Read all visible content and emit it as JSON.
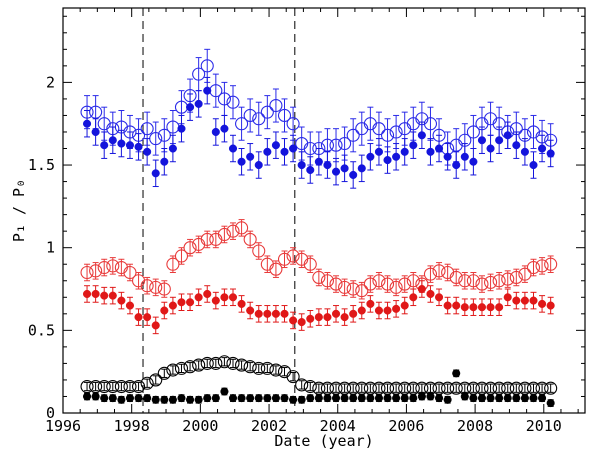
{
  "chart_data": {
    "type": "scatter",
    "title": "",
    "xlabel": "Date (year)",
    "ylabel": "P₁ / P₀",
    "xlim": [
      1996,
      2011.2
    ],
    "ylim": [
      0,
      2.45
    ],
    "xticks": [
      1996,
      1998,
      2000,
      2002,
      2004,
      2006,
      2008,
      2010
    ],
    "yticks": [
      0,
      0.5,
      1,
      1.5,
      2
    ],
    "ytick_labels": [
      "0",
      "0.5",
      "1",
      "1.5",
      "2"
    ],
    "vertical_lines": [
      1998.33,
      2002.75
    ],
    "grid": false,
    "series": [
      {
        "color": "#2a2ae8",
        "marker": "open-circle",
        "x": [
          1996.7,
          1996.95,
          1997.2,
          1997.45,
          1997.7,
          1997.95,
          1998.2,
          1998.45,
          1998.7,
          1998.95,
          1999.2,
          1999.45,
          1999.7,
          1999.95,
          2000.2,
          2000.45,
          2000.7,
          2000.95,
          2001.2,
          2001.45,
          2001.7,
          2001.95,
          2002.2,
          2002.45,
          2002.7,
          2002.95,
          2003.2,
          2003.45,
          2003.7,
          2003.95,
          2004.2,
          2004.45,
          2004.7,
          2004.95,
          2005.2,
          2005.45,
          2005.7,
          2005.95,
          2006.2,
          2006.45,
          2006.7,
          2006.95,
          2007.2,
          2007.45,
          2007.7,
          2007.95,
          2008.2,
          2008.45,
          2008.7,
          2008.95,
          2009.2,
          2009.45,
          2009.7,
          2009.95,
          2010.2
        ],
        "y": [
          1.82,
          1.82,
          1.75,
          1.72,
          1.73,
          1.7,
          1.68,
          1.72,
          1.66,
          1.68,
          1.73,
          1.85,
          1.92,
          2.05,
          2.1,
          1.95,
          1.9,
          1.88,
          1.75,
          1.8,
          1.78,
          1.82,
          1.86,
          1.8,
          1.75,
          1.63,
          1.6,
          1.6,
          1.62,
          1.62,
          1.63,
          1.68,
          1.72,
          1.75,
          1.72,
          1.68,
          1.7,
          1.72,
          1.75,
          1.78,
          1.75,
          1.68,
          1.6,
          1.62,
          1.65,
          1.7,
          1.75,
          1.78,
          1.75,
          1.7,
          1.72,
          1.68,
          1.7,
          1.67,
          1.65
        ],
        "err": 0.1
      },
      {
        "color": "#1414dc",
        "marker": "filled-circle",
        "x": [
          1996.7,
          1996.95,
          1997.2,
          1997.45,
          1997.7,
          1997.95,
          1998.2,
          1998.45,
          1998.7,
          1998.95,
          1999.2,
          1999.45,
          1999.7,
          1999.95,
          2000.2,
          2000.45,
          2000.7,
          2000.95,
          2001.2,
          2001.45,
          2001.7,
          2001.95,
          2002.2,
          2002.45,
          2002.7,
          2002.95,
          2003.2,
          2003.45,
          2003.7,
          2003.95,
          2004.2,
          2004.45,
          2004.7,
          2004.95,
          2005.2,
          2005.45,
          2005.7,
          2005.95,
          2006.2,
          2006.45,
          2006.7,
          2006.95,
          2007.2,
          2007.45,
          2007.7,
          2007.95,
          2008.2,
          2008.45,
          2008.7,
          2008.95,
          2009.2,
          2009.45,
          2009.7,
          2009.95,
          2010.2
        ],
        "y": [
          1.75,
          1.7,
          1.62,
          1.65,
          1.63,
          1.62,
          1.61,
          1.58,
          1.45,
          1.52,
          1.6,
          1.72,
          1.85,
          1.87,
          1.95,
          1.7,
          1.72,
          1.6,
          1.52,
          1.55,
          1.5,
          1.58,
          1.62,
          1.58,
          1.6,
          1.5,
          1.47,
          1.52,
          1.5,
          1.46,
          1.48,
          1.44,
          1.48,
          1.55,
          1.58,
          1.53,
          1.55,
          1.58,
          1.62,
          1.68,
          1.58,
          1.6,
          1.55,
          1.5,
          1.55,
          1.52,
          1.65,
          1.6,
          1.65,
          1.68,
          1.62,
          1.58,
          1.5,
          1.6,
          1.57
        ],
        "err": 0.08
      },
      {
        "color": "#e83a3a",
        "marker": "open-circle",
        "x": [
          1996.7,
          1996.95,
          1997.2,
          1997.45,
          1997.7,
          1997.95,
          1998.2,
          1998.45,
          1998.7,
          1998.95,
          1999.2,
          1999.45,
          1999.7,
          1999.95,
          2000.2,
          2000.45,
          2000.7,
          2000.95,
          2001.2,
          2001.45,
          2001.7,
          2001.95,
          2002.2,
          2002.45,
          2002.7,
          2002.95,
          2003.2,
          2003.45,
          2003.7,
          2003.95,
          2004.2,
          2004.45,
          2004.7,
          2004.95,
          2005.2,
          2005.45,
          2005.7,
          2005.95,
          2006.2,
          2006.45,
          2006.7,
          2006.95,
          2007.2,
          2007.45,
          2007.7,
          2007.95,
          2008.2,
          2008.45,
          2008.7,
          2008.95,
          2009.2,
          2009.45,
          2009.7,
          2009.95,
          2010.2
        ],
        "y": [
          0.85,
          0.86,
          0.88,
          0.89,
          0.88,
          0.85,
          0.8,
          0.77,
          0.76,
          0.75,
          0.9,
          0.95,
          1.0,
          1.02,
          1.05,
          1.05,
          1.08,
          1.1,
          1.12,
          1.05,
          0.98,
          0.9,
          0.87,
          0.93,
          0.95,
          0.93,
          0.9,
          0.82,
          0.8,
          0.78,
          0.76,
          0.75,
          0.74,
          0.78,
          0.8,
          0.78,
          0.76,
          0.78,
          0.8,
          0.78,
          0.84,
          0.86,
          0.85,
          0.82,
          0.8,
          0.8,
          0.78,
          0.79,
          0.8,
          0.81,
          0.82,
          0.84,
          0.88,
          0.89,
          0.9
        ],
        "err": 0.05
      },
      {
        "color": "#e01818",
        "marker": "filled-circle",
        "x": [
          1996.7,
          1996.95,
          1997.2,
          1997.45,
          1997.7,
          1997.95,
          1998.2,
          1998.45,
          1998.7,
          1998.95,
          1999.2,
          1999.45,
          1999.7,
          1999.95,
          2000.2,
          2000.45,
          2000.7,
          2000.95,
          2001.2,
          2001.45,
          2001.7,
          2001.95,
          2002.2,
          2002.45,
          2002.7,
          2002.95,
          2003.2,
          2003.45,
          2003.7,
          2003.95,
          2004.2,
          2004.45,
          2004.7,
          2004.95,
          2005.2,
          2005.45,
          2005.7,
          2005.95,
          2006.2,
          2006.45,
          2006.7,
          2006.95,
          2007.2,
          2007.45,
          2007.7,
          2007.95,
          2008.2,
          2008.45,
          2008.7,
          2008.95,
          2009.2,
          2009.45,
          2009.7,
          2009.95,
          2010.2
        ],
        "y": [
          0.72,
          0.72,
          0.71,
          0.71,
          0.68,
          0.65,
          0.58,
          0.58,
          0.53,
          0.62,
          0.65,
          0.67,
          0.67,
          0.7,
          0.72,
          0.68,
          0.7,
          0.7,
          0.66,
          0.62,
          0.6,
          0.6,
          0.6,
          0.6,
          0.56,
          0.55,
          0.57,
          0.58,
          0.58,
          0.6,
          0.58,
          0.6,
          0.62,
          0.66,
          0.62,
          0.62,
          0.63,
          0.65,
          0.7,
          0.75,
          0.72,
          0.7,
          0.65,
          0.65,
          0.64,
          0.64,
          0.64,
          0.64,
          0.64,
          0.7,
          0.68,
          0.68,
          0.68,
          0.66,
          0.65
        ],
        "err": 0.05
      },
      {
        "color": "#000000",
        "marker": "open-circle",
        "x": [
          1996.7,
          1996.95,
          1997.2,
          1997.45,
          1997.7,
          1997.95,
          1998.2,
          1998.45,
          1998.7,
          1998.95,
          1999.2,
          1999.45,
          1999.7,
          1999.95,
          2000.2,
          2000.45,
          2000.7,
          2000.95,
          2001.2,
          2001.45,
          2001.7,
          2001.95,
          2002.2,
          2002.45,
          2002.7,
          2002.95,
          2003.2,
          2003.45,
          2003.7,
          2003.95,
          2004.2,
          2004.45,
          2004.7,
          2004.95,
          2005.2,
          2005.45,
          2005.7,
          2005.95,
          2006.2,
          2006.45,
          2006.7,
          2006.95,
          2007.2,
          2007.45,
          2007.7,
          2007.95,
          2008.2,
          2008.45,
          2008.7,
          2008.95,
          2009.2,
          2009.45,
          2009.7,
          2009.95,
          2010.2
        ],
        "y": [
          0.16,
          0.16,
          0.16,
          0.16,
          0.16,
          0.16,
          0.16,
          0.18,
          0.2,
          0.24,
          0.26,
          0.27,
          0.28,
          0.29,
          0.3,
          0.3,
          0.31,
          0.3,
          0.29,
          0.28,
          0.27,
          0.27,
          0.26,
          0.25,
          0.22,
          0.17,
          0.16,
          0.15,
          0.15,
          0.15,
          0.15,
          0.15,
          0.15,
          0.15,
          0.15,
          0.15,
          0.15,
          0.15,
          0.15,
          0.15,
          0.15,
          0.15,
          0.15,
          0.15,
          0.15,
          0.15,
          0.15,
          0.15,
          0.15,
          0.15,
          0.15,
          0.15,
          0.15,
          0.15,
          0.15
        ],
        "err": 0.025
      },
      {
        "color": "#000000",
        "marker": "filled-circle",
        "x": [
          1996.7,
          1996.95,
          1997.2,
          1997.45,
          1997.7,
          1997.95,
          1998.2,
          1998.45,
          1998.7,
          1998.95,
          1999.2,
          1999.45,
          1999.7,
          1999.95,
          2000.2,
          2000.45,
          2000.7,
          2000.95,
          2001.2,
          2001.45,
          2001.7,
          2001.95,
          2002.2,
          2002.45,
          2002.7,
          2002.95,
          2003.2,
          2003.45,
          2003.7,
          2003.95,
          2004.2,
          2004.45,
          2004.7,
          2004.95,
          2005.2,
          2005.45,
          2005.7,
          2005.95,
          2006.2,
          2006.45,
          2006.7,
          2006.95,
          2007.2,
          2007.45,
          2007.7,
          2007.95,
          2008.2,
          2008.45,
          2008.7,
          2008.95,
          2009.2,
          2009.45,
          2009.7,
          2009.95,
          2010.2
        ],
        "y": [
          0.1,
          0.1,
          0.09,
          0.09,
          0.08,
          0.09,
          0.09,
          0.09,
          0.08,
          0.08,
          0.08,
          0.09,
          0.08,
          0.08,
          0.09,
          0.09,
          0.13,
          0.09,
          0.09,
          0.09,
          0.09,
          0.09,
          0.09,
          0.09,
          0.08,
          0.08,
          0.09,
          0.09,
          0.09,
          0.09,
          0.09,
          0.09,
          0.09,
          0.09,
          0.09,
          0.09,
          0.09,
          0.09,
          0.09,
          0.1,
          0.1,
          0.09,
          0.08,
          0.24,
          0.1,
          0.09,
          0.09,
          0.09,
          0.09,
          0.09,
          0.09,
          0.09,
          0.09,
          0.09,
          0.06
        ],
        "err": 0.02
      }
    ]
  }
}
